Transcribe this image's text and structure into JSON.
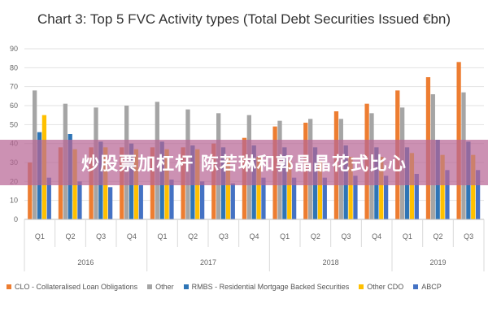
{
  "title": "Chart 3: Top 5 FVC Activity types (Total Debt Securities Issued €bn)",
  "banner": "炒股票加杠杆 陈若琳和郭晶晶花式比心",
  "colors": {
    "clo": "#ED7D31",
    "other": "#A5A5A5",
    "rmbs": "#2E75B6",
    "other_cdo": "#FFC000",
    "abcp": "#4472C4",
    "banner": "#B96696"
  },
  "chart_data": {
    "type": "bar",
    "title": "Chart 3: Top 5 FVC Activity types (Total Debt Securities Issued €bn)",
    "xlabel": "",
    "ylabel": "",
    "ylim": [
      0,
      90
    ],
    "yticks": [
      0,
      10,
      20,
      30,
      40,
      50,
      60,
      70,
      80,
      90
    ],
    "grid": true,
    "legend_position": "bottom",
    "categories": [
      "Q1",
      "Q2",
      "Q3",
      "Q4",
      "Q1",
      "Q2",
      "Q3",
      "Q4",
      "Q1",
      "Q2",
      "Q3",
      "Q4",
      "Q1",
      "Q2",
      "Q3"
    ],
    "groups": [
      {
        "label": "2016",
        "count": 4
      },
      {
        "label": "2017",
        "count": 4
      },
      {
        "label": "2018",
        "count": 4
      },
      {
        "label": "2019",
        "count": 3
      }
    ],
    "series": [
      {
        "name": "CLO - Collateralised Loan Obligations",
        "color_key": "clo",
        "values": [
          30,
          38,
          38,
          38,
          38,
          38,
          40,
          43,
          49,
          51,
          57,
          61,
          68,
          75,
          83
        ]
      },
      {
        "name": "Other",
        "color_key": "other",
        "values": [
          68,
          61,
          59,
          60,
          62,
          58,
          56,
          55,
          52,
          53,
          53,
          56,
          59,
          66,
          67
        ]
      },
      {
        "name": "RMBS - Residential Mortgage Backed Securities",
        "color_key": "rmbs",
        "values": [
          46,
          45,
          41,
          40,
          41,
          39,
          38,
          39,
          38,
          38,
          39,
          38,
          38,
          42,
          41
        ]
      },
      {
        "name": "Other CDO",
        "color_key": "other_cdo",
        "values": [
          55,
          37,
          38,
          37,
          37,
          37,
          33,
          33,
          31,
          31,
          33,
          33,
          35,
          34,
          34
        ]
      },
      {
        "name": "ABCP",
        "color_key": "abcp",
        "values": [
          22,
          20,
          17,
          18,
          21,
          20,
          19,
          22,
          22,
          22,
          23,
          23,
          24,
          26,
          26
        ]
      }
    ]
  }
}
